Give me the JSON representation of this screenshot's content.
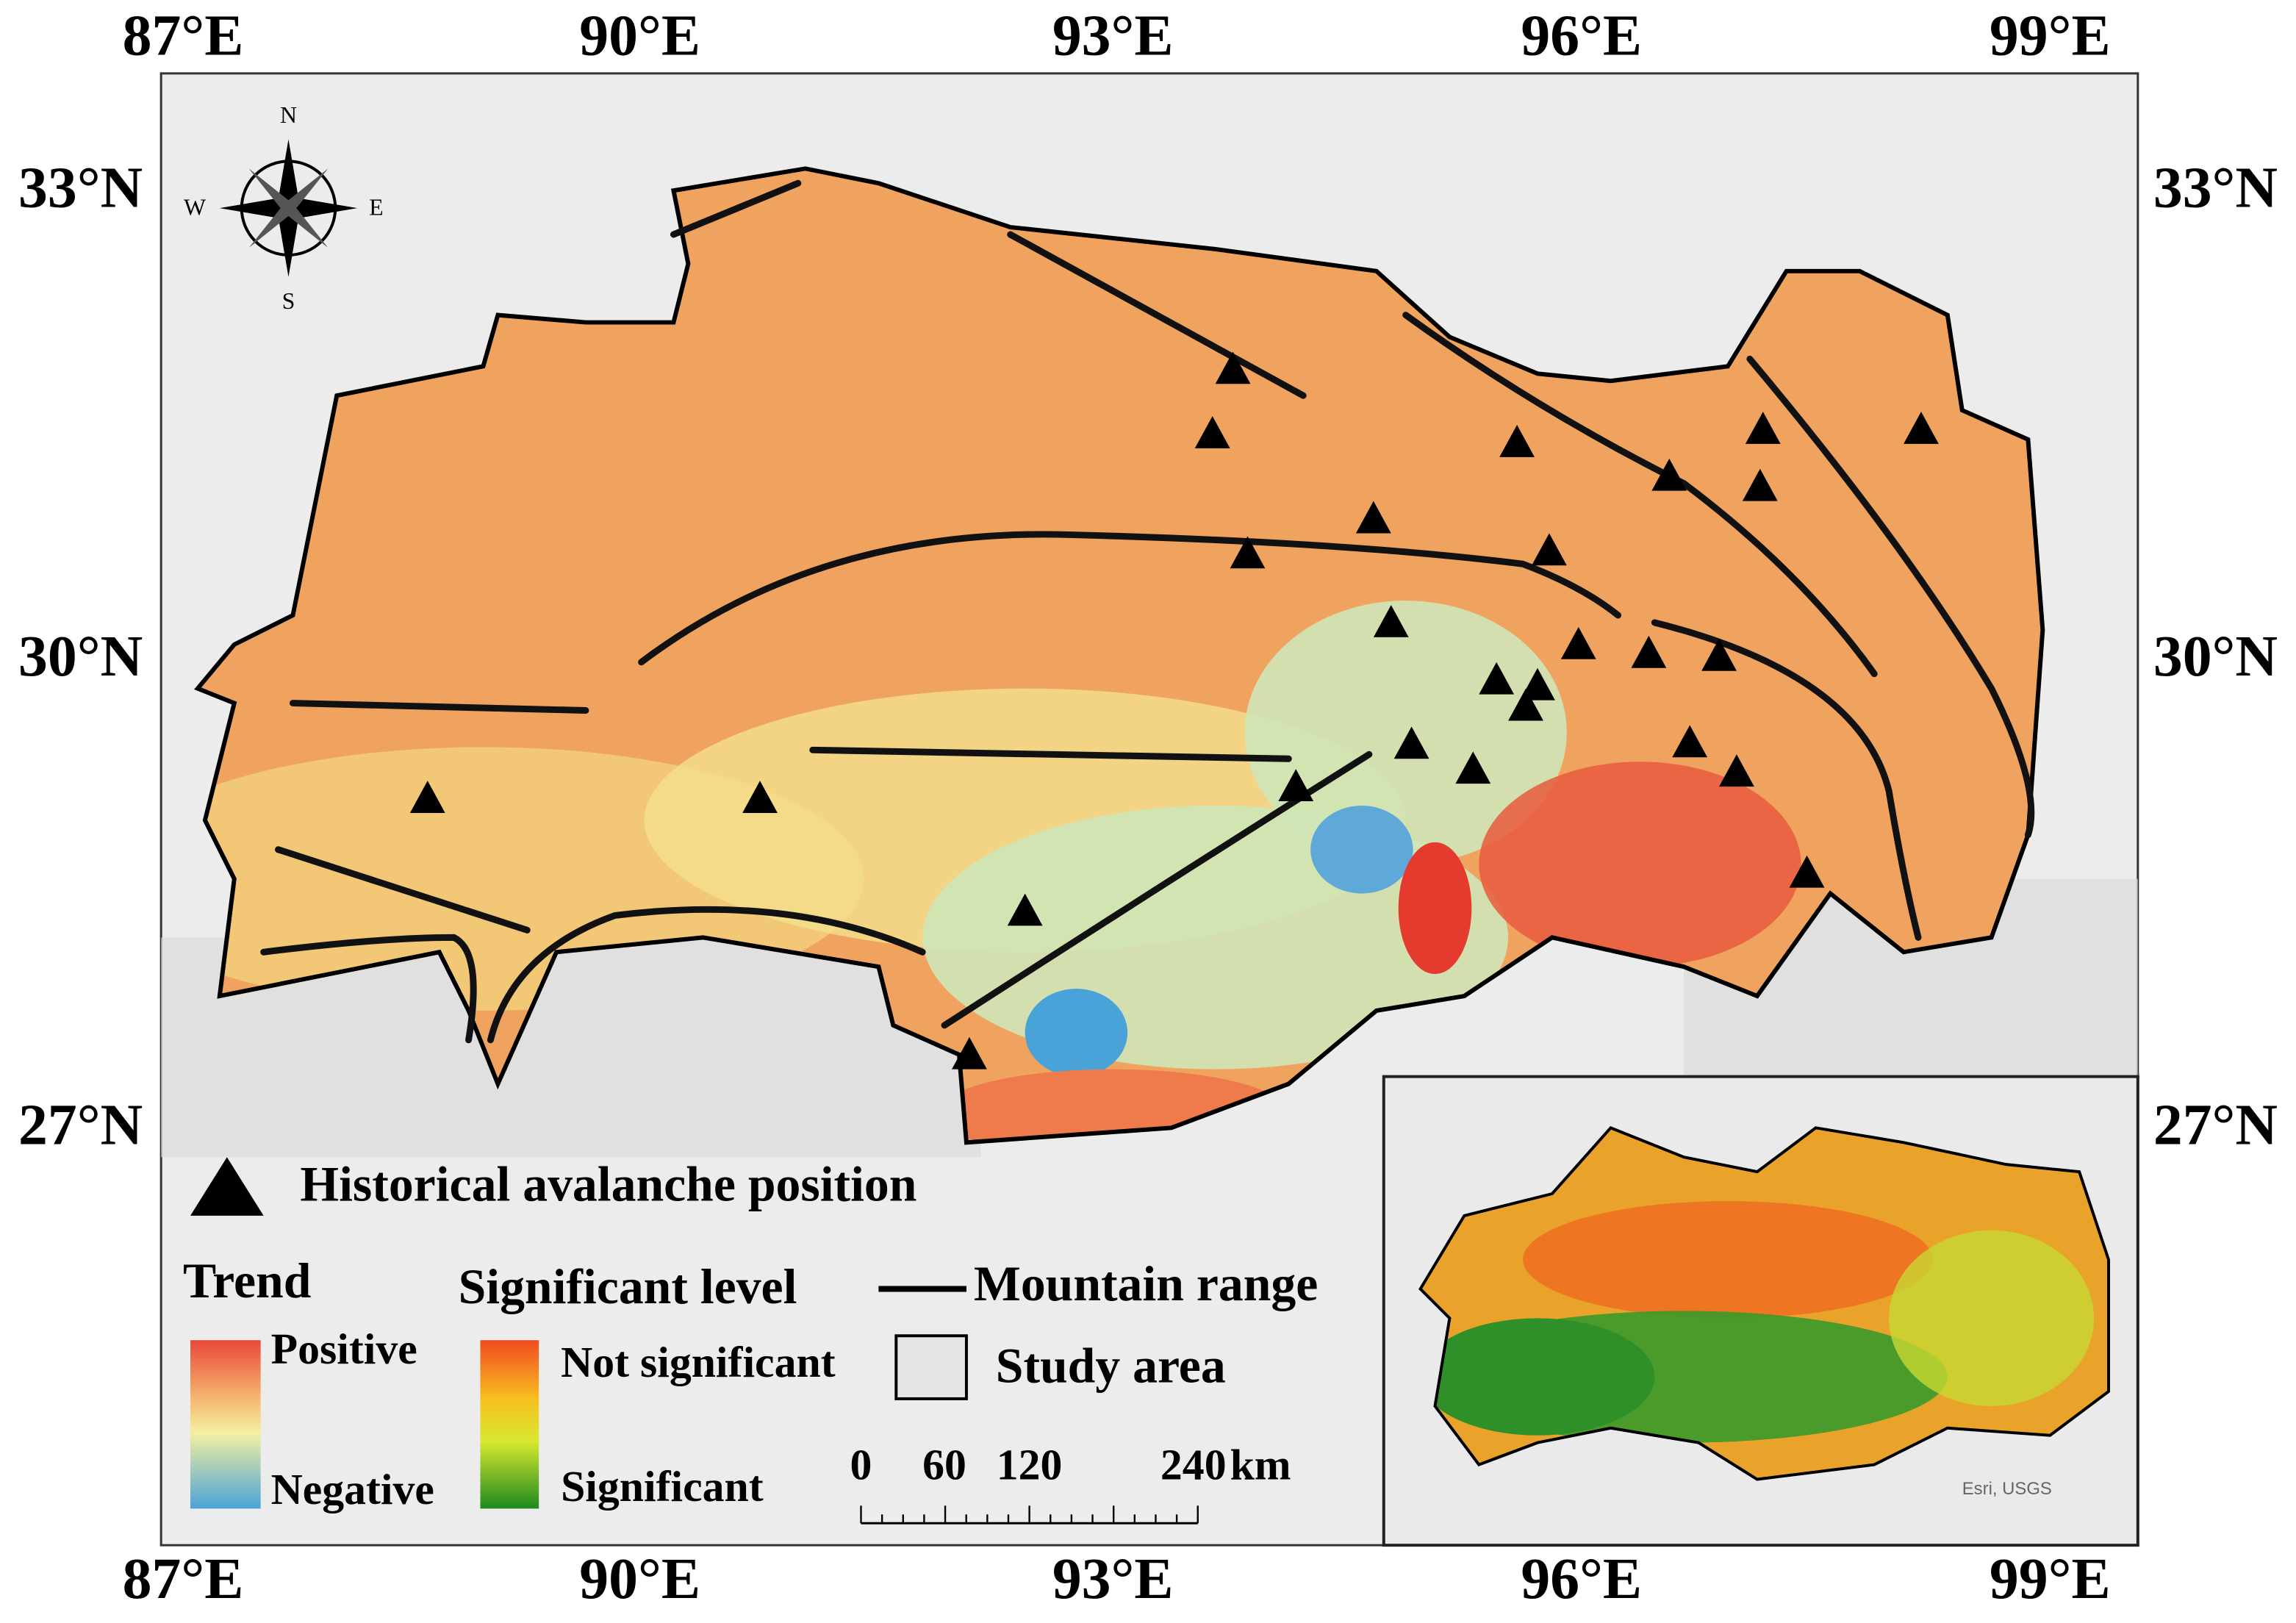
{
  "axes": {
    "top": [
      "87°E",
      "90°E",
      "93°E",
      "96°E",
      "99°E"
    ],
    "bottom": [
      "87°E",
      "90°E",
      "93°E",
      "96°E",
      "99°E"
    ],
    "left": [
      "33°N",
      "30°N",
      "27°N"
    ],
    "right": [
      "33°N",
      "30°N",
      "27°N"
    ]
  },
  "compass": {
    "north": "N",
    "south": "S",
    "east": "E",
    "west": "W"
  },
  "legend": {
    "avalanche": "Historical avalanche position",
    "trend": {
      "title": "Trend",
      "high": "Positive",
      "low": "Negative"
    },
    "significance": {
      "title": "Significant level",
      "high": "Not significant",
      "low": "Significant"
    },
    "mountain": "Mountain range",
    "study_area": "Study area"
  },
  "scale_bar": {
    "labels": [
      "0",
      "60",
      "120",
      "240"
    ],
    "unit": "km"
  },
  "attribution": "Esri, USGS"
}
